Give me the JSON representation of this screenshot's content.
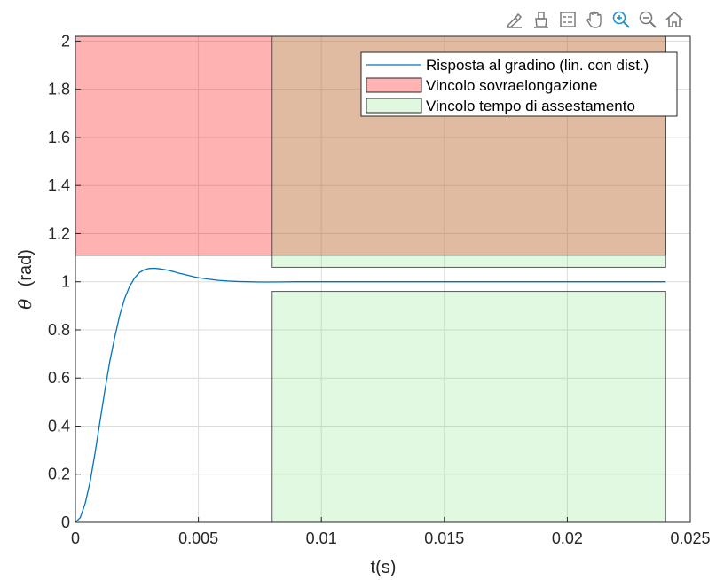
{
  "toolbar": {
    "icons": [
      "brush-icon",
      "data-tips-icon",
      "legend-icon",
      "pan-hand-icon",
      "zoom-in-icon",
      "zoom-out-icon",
      "home-icon"
    ],
    "active_color": "#1f8fd6",
    "icon_color": "#7a7a7a"
  },
  "chart_data": {
    "type": "line",
    "title": "",
    "xlabel": "t(s)",
    "ylabel_symbol": "θ",
    "ylabel_unit": "(rad)",
    "xlim": [
      0,
      0.025
    ],
    "ylim": [
      0,
      2.02
    ],
    "xticks": [
      0,
      0.005,
      0.01,
      0.015,
      0.02,
      0.025
    ],
    "xtick_labels": [
      "0",
      "0.005",
      "0.01",
      "0.015",
      "0.02",
      "0.025"
    ],
    "yticks": [
      0,
      0.2,
      0.4,
      0.6,
      0.8,
      1,
      1.2,
      1.4,
      1.6,
      1.8,
      2
    ],
    "ytick_labels": [
      "0",
      "0.2",
      "0.4",
      "0.6",
      "0.8",
      "1",
      "1.2",
      "1.4",
      "1.6",
      "1.8",
      "2"
    ],
    "grid": true,
    "legend_position": "top-right",
    "series": [
      {
        "name": "Risposta al gradino (lin. con dist.)",
        "color": "#0072bd",
        "x": [
          0,
          0.0002,
          0.0004,
          0.0006,
          0.0008,
          0.001,
          0.0012,
          0.0014,
          0.0016,
          0.0018,
          0.002,
          0.0022,
          0.0024,
          0.0026,
          0.0028,
          0.003,
          0.0032,
          0.0034,
          0.0036,
          0.0038,
          0.004,
          0.0042,
          0.0044,
          0.0046,
          0.0048,
          0.005,
          0.0054,
          0.0058,
          0.0062,
          0.0066,
          0.007,
          0.0075,
          0.008,
          0.009,
          0.01,
          0.012,
          0.014,
          0.016,
          0.018,
          0.02,
          0.022,
          0.024
        ],
        "y": [
          0,
          0.02,
          0.08,
          0.17,
          0.29,
          0.42,
          0.55,
          0.67,
          0.77,
          0.86,
          0.93,
          0.98,
          1.015,
          1.038,
          1.05,
          1.055,
          1.056,
          1.054,
          1.051,
          1.047,
          1.042,
          1.036,
          1.031,
          1.026,
          1.021,
          1.017,
          1.011,
          1.006,
          1.003,
          1.001,
          1.0,
          0.999,
          0.999,
          1.0,
          1.0,
          1.0,
          1.0,
          1.0,
          1.0,
          1.0,
          1.0,
          1.0
        ]
      }
    ],
    "regions": [
      {
        "name": "Vincolo sovraelongazione",
        "color": "#ff0000",
        "opacity": 0.3,
        "x": [
          0,
          0.024
        ],
        "y": [
          1.11,
          2.02
        ]
      },
      {
        "name": "Vincolo tempo di assestamento",
        "color": "#66e066",
        "opacity": 0.2,
        "x": [
          0.008,
          0.024
        ],
        "y": [
          1.06,
          2.02
        ]
      },
      {
        "name": "",
        "color": "#66e066",
        "opacity": 0.2,
        "x": [
          0.008,
          0.024
        ],
        "y": [
          0,
          0.96
        ]
      }
    ],
    "legend": [
      {
        "label": "Risposta al gradino (lin. con dist.)",
        "kind": "line",
        "color": "#0072bd"
      },
      {
        "label": "Vincolo sovraelongazione",
        "kind": "patch",
        "color": "#ffb3b3"
      },
      {
        "label": "Vincolo tempo di assestamento",
        "kind": "patch",
        "color": "#e0f8e0"
      }
    ]
  }
}
